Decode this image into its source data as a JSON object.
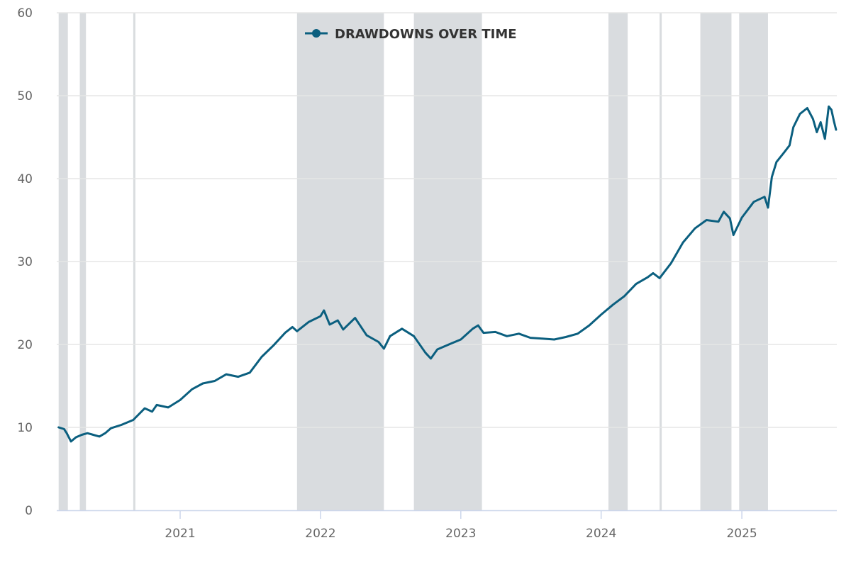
{
  "chart_data": {
    "type": "line",
    "title": "",
    "xlabel": "",
    "ylabel": "",
    "ylim": [
      0,
      60
    ],
    "xlim": [
      "2020-02-15",
      "2025-09-05"
    ],
    "y_ticks": [
      0,
      10,
      20,
      30,
      40,
      50,
      60
    ],
    "y_tick_labels": [
      "0",
      "10",
      "20",
      "30",
      "40",
      "50",
      "60"
    ],
    "x_ticks": [
      "2021-01-01",
      "2022-01-01",
      "2023-01-01",
      "2024-01-01",
      "2025-01-01"
    ],
    "x_tick_labels": [
      "2021",
      "2022",
      "2023",
      "2024",
      "2025"
    ],
    "grid": true,
    "legend": {
      "placement": "top-center",
      "show": true
    },
    "series": [
      {
        "name": "DRAWDOWNS OVER TIME",
        "color": "#0b5f7f",
        "points": [
          [
            "2020-02-20",
            10.0
          ],
          [
            "2020-03-05",
            9.8
          ],
          [
            "2020-03-12",
            9.3
          ],
          [
            "2020-03-23",
            8.3
          ],
          [
            "2020-04-05",
            8.8
          ],
          [
            "2020-04-20",
            9.1
          ],
          [
            "2020-05-05",
            9.3
          ],
          [
            "2020-05-20",
            9.1
          ],
          [
            "2020-06-05",
            8.9
          ],
          [
            "2020-06-20",
            9.3
          ],
          [
            "2020-07-05",
            9.9
          ],
          [
            "2020-08-01",
            10.3
          ],
          [
            "2020-09-01",
            10.9
          ],
          [
            "2020-10-01",
            12.3
          ],
          [
            "2020-10-20",
            11.9
          ],
          [
            "2020-11-01",
            12.7
          ],
          [
            "2020-12-01",
            12.4
          ],
          [
            "2021-01-01",
            13.3
          ],
          [
            "2021-02-01",
            14.6
          ],
          [
            "2021-03-01",
            15.3
          ],
          [
            "2021-04-01",
            15.6
          ],
          [
            "2021-05-01",
            16.4
          ],
          [
            "2021-06-01",
            16.1
          ],
          [
            "2021-07-01",
            16.6
          ],
          [
            "2021-08-01",
            18.5
          ],
          [
            "2021-09-01",
            19.9
          ],
          [
            "2021-10-01",
            21.4
          ],
          [
            "2021-10-20",
            22.1
          ],
          [
            "2021-11-01",
            21.6
          ],
          [
            "2021-12-01",
            22.7
          ],
          [
            "2022-01-01",
            23.4
          ],
          [
            "2022-01-10",
            24.1
          ],
          [
            "2022-01-25",
            22.4
          ],
          [
            "2022-02-15",
            22.9
          ],
          [
            "2022-03-01",
            21.8
          ],
          [
            "2022-04-01",
            23.2
          ],
          [
            "2022-05-01",
            21.1
          ],
          [
            "2022-06-01",
            20.3
          ],
          [
            "2022-06-15",
            19.5
          ],
          [
            "2022-07-01",
            21.0
          ],
          [
            "2022-08-01",
            21.9
          ],
          [
            "2022-09-01",
            21.0
          ],
          [
            "2022-10-01",
            19.0
          ],
          [
            "2022-10-15",
            18.3
          ],
          [
            "2022-11-01",
            19.4
          ],
          [
            "2022-12-01",
            20.0
          ],
          [
            "2023-01-01",
            20.6
          ],
          [
            "2023-02-01",
            21.9
          ],
          [
            "2023-02-15",
            22.3
          ],
          [
            "2023-03-01",
            21.4
          ],
          [
            "2023-04-01",
            21.5
          ],
          [
            "2023-05-01",
            21.0
          ],
          [
            "2023-06-01",
            21.3
          ],
          [
            "2023-07-01",
            20.8
          ],
          [
            "2023-08-01",
            20.7
          ],
          [
            "2023-09-01",
            20.6
          ],
          [
            "2023-10-01",
            20.9
          ],
          [
            "2023-11-01",
            21.3
          ],
          [
            "2023-12-01",
            22.3
          ],
          [
            "2024-01-01",
            23.6
          ],
          [
            "2024-02-01",
            24.8
          ],
          [
            "2024-03-01",
            25.8
          ],
          [
            "2024-04-01",
            27.3
          ],
          [
            "2024-05-01",
            28.1
          ],
          [
            "2024-05-15",
            28.6
          ],
          [
            "2024-06-01",
            28.0
          ],
          [
            "2024-07-01",
            29.8
          ],
          [
            "2024-08-01",
            32.3
          ],
          [
            "2024-09-01",
            34.0
          ],
          [
            "2024-10-01",
            35.0
          ],
          [
            "2024-11-01",
            34.8
          ],
          [
            "2024-11-15",
            36.0
          ],
          [
            "2024-12-01",
            35.2
          ],
          [
            "2024-12-10",
            33.2
          ],
          [
            "2025-01-01",
            35.3
          ],
          [
            "2025-02-01",
            37.2
          ],
          [
            "2025-03-01",
            37.8
          ],
          [
            "2025-03-10",
            36.5
          ],
          [
            "2025-03-20",
            40.2
          ],
          [
            "2025-04-01",
            42.0
          ],
          [
            "2025-04-20",
            43.1
          ],
          [
            "2025-05-05",
            44.0
          ],
          [
            "2025-05-15",
            46.2
          ],
          [
            "2025-06-01",
            47.8
          ],
          [
            "2025-06-20",
            48.5
          ],
          [
            "2025-07-05",
            47.2
          ],
          [
            "2025-07-15",
            45.6
          ],
          [
            "2025-07-25",
            46.8
          ],
          [
            "2025-08-05",
            44.8
          ],
          [
            "2025-08-15",
            48.7
          ],
          [
            "2025-08-22",
            48.3
          ],
          [
            "2025-08-28",
            47.0
          ],
          [
            "2025-09-03",
            45.9
          ]
        ]
      }
    ],
    "shaded_periods": [
      [
        "2020-02-20",
        "2020-03-15"
      ],
      [
        "2020-04-15",
        "2020-05-01"
      ],
      [
        "2020-09-01",
        "2020-09-06"
      ],
      [
        "2021-11-01",
        "2022-06-15"
      ],
      [
        "2022-09-01",
        "2023-02-25"
      ],
      [
        "2024-01-20",
        "2024-03-10"
      ],
      [
        "2024-06-01",
        "2024-06-06"
      ],
      [
        "2024-09-15",
        "2024-12-05"
      ],
      [
        "2024-12-25",
        "2025-03-10"
      ]
    ],
    "colors": {
      "line": "#0b5f7f",
      "shade": "#d9dcdf",
      "grid": "#e6e6e6",
      "axis": "#ccd6eb",
      "tick_text": "#666666"
    }
  }
}
